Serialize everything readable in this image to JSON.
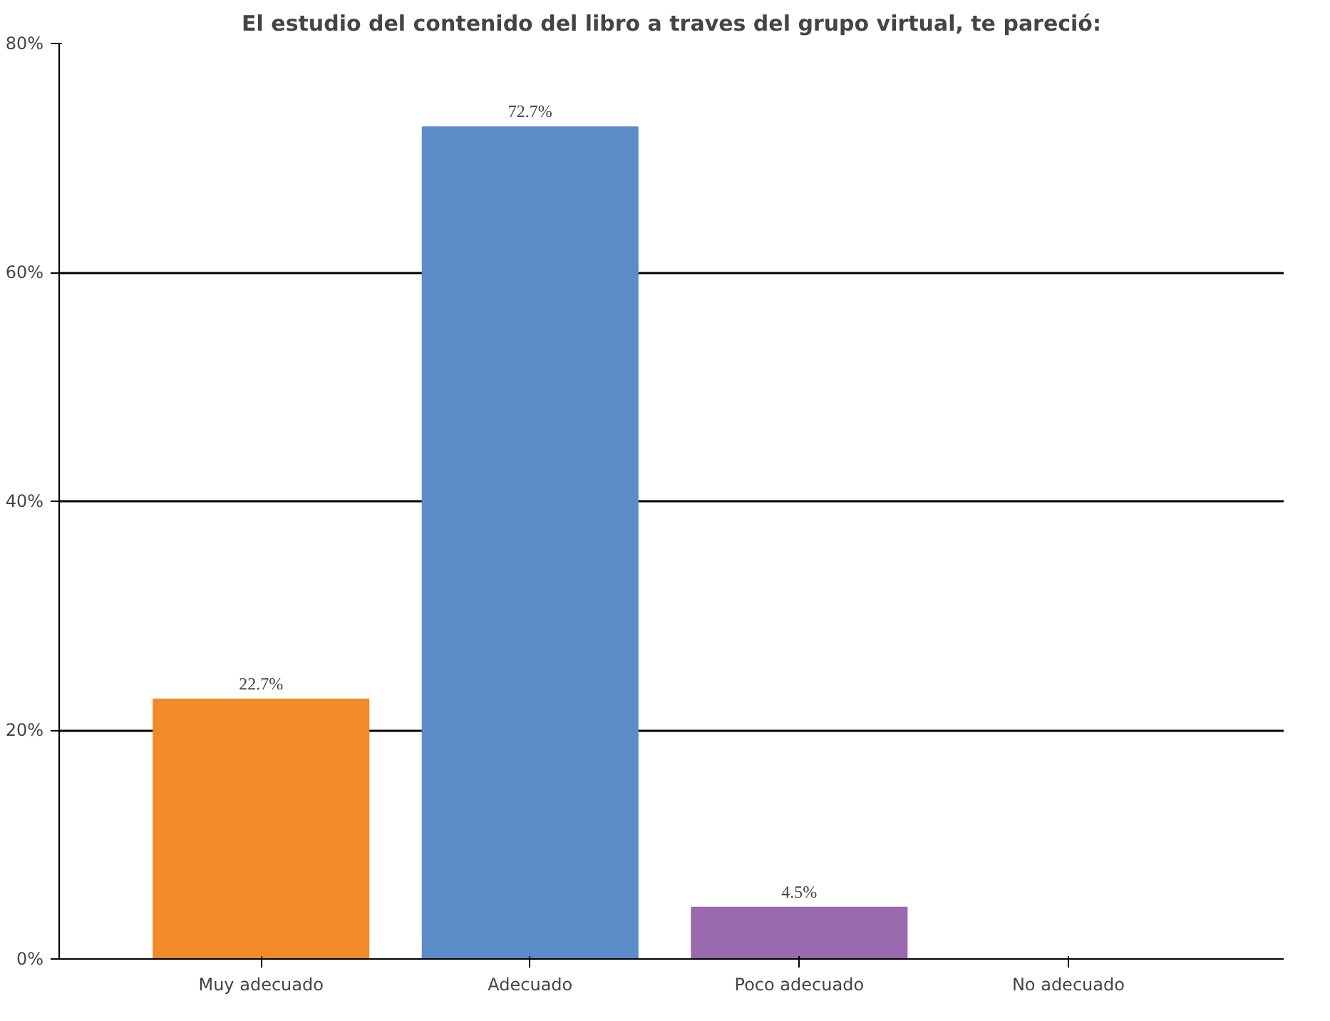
{
  "chart_data": {
    "type": "bar",
    "title": "El estudio del contenido del libro a traves del grupo virtual, te pareció:",
    "categories": [
      "Muy adecuado",
      "Adecuado",
      "Poco adecuado",
      "No adecuado"
    ],
    "values": [
      22.7,
      72.7,
      4.5,
      0
    ],
    "colors": [
      "#f28a2a",
      "#5b8cc8",
      "#9a6ab0",
      "#7fb04f"
    ],
    "value_labels": [
      "22.7%",
      "72.7%",
      "4.5%",
      null
    ],
    "ylim": [
      0,
      80
    ],
    "yticks": [
      {
        "value": 0,
        "label": "0%"
      },
      {
        "value": 20,
        "label": "20%"
      },
      {
        "value": 40,
        "label": "40%"
      },
      {
        "value": 60,
        "label": "60%"
      },
      {
        "value": 80,
        "label": "80%"
      }
    ],
    "grid": "y"
  }
}
